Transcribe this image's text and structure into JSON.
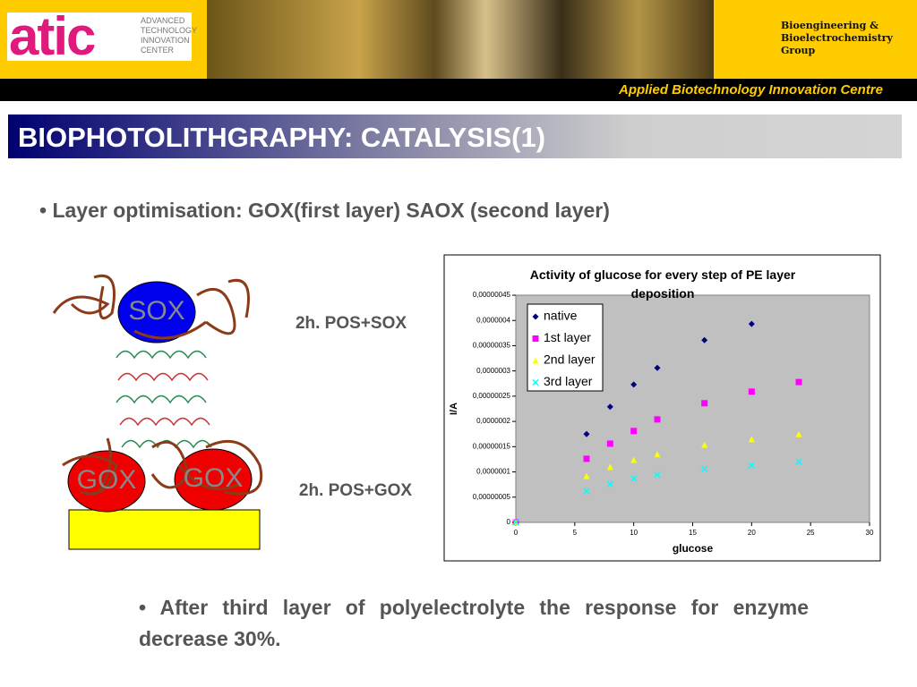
{
  "header": {
    "logo_text": "atic",
    "logo_caption": [
      "ADVANCED",
      "TECHNOLOGY",
      "INNOVATION",
      "CENTER"
    ],
    "group_lines": [
      "Bioengineering &",
      "Bioelectrochemistry",
      "Group"
    ],
    "banner": "Applied Biotechnology Innovation Centre"
  },
  "title": "BIOPHOTOLITHGRAPHY: CATALYSIS(1)",
  "bullet_1": "Layer optimisation: GOX(first layer) SAOX (second layer)",
  "diagram": {
    "top_enzyme": "SOX",
    "bottom_enzymes": [
      "GOX",
      "GOX"
    ],
    "label_top": "2h. POS+SOX",
    "label_bottom": "2h. POS+GOX"
  },
  "bullet_2": "After third layer of polyelectrolyte the response for enzyme decrease 30%.",
  "chart_data": {
    "type": "scatter",
    "title": "Activity of glucose for every step of PE layer deposition",
    "x_label": "glucose",
    "y_label": "I/A",
    "x": [
      0,
      6,
      8,
      10,
      12,
      16,
      20,
      24
    ],
    "series": [
      {
        "name": "native",
        "color": "#000080",
        "marker": "diamond",
        "values": [
          0,
          1.75e-07,
          2.29e-07,
          2.73e-07,
          3.06e-07,
          3.61e-07,
          3.93e-07,
          null
        ]
      },
      {
        "name": "1st layer",
        "color": "#ff00ff",
        "marker": "square",
        "values": [
          0,
          1.26e-07,
          1.56e-07,
          1.81e-07,
          2.04e-07,
          2.36e-07,
          2.59e-07,
          2.78e-07
        ]
      },
      {
        "name": "2nd layer",
        "color": "#ffff00",
        "marker": "triangle",
        "values": [
          0,
          9.2e-08,
          1.1e-07,
          1.24e-07,
          1.35e-07,
          1.54e-07,
          1.65e-07,
          1.75e-07
        ]
      },
      {
        "name": "3rd layer",
        "color": "#00ffff",
        "marker": "cross",
        "values": [
          0,
          6.2e-08,
          7.6e-08,
          8.7e-08,
          9.4e-08,
          1.06e-07,
          1.13e-07,
          1.2e-07
        ]
      }
    ],
    "xlim": [
      0,
      30
    ],
    "xticks": [
      0,
      5,
      10,
      15,
      20,
      25,
      30
    ],
    "ylim": [
      0,
      4.5e-07
    ],
    "yticks": [
      0,
      {
        "value": 5e-08,
        "label": "0,00000005"
      },
      {
        "value": 1e-07,
        "label": "0,0000001"
      },
      {
        "value": 1.5e-07,
        "label": "0,00000015"
      },
      {
        "value": 2e-07,
        "label": "0,0000002"
      },
      {
        "value": 2.5e-07,
        "label": "0,00000025"
      },
      {
        "value": 3e-07,
        "label": "0,0000003"
      },
      {
        "value": 3.5e-07,
        "label": "0,00000035"
      },
      {
        "value": 4e-07,
        "label": "0,0000004"
      },
      {
        "value": 4.5e-07,
        "label": "0,00000045"
      }
    ],
    "plot_background": "#c0c0c0",
    "legend": "upper left"
  }
}
